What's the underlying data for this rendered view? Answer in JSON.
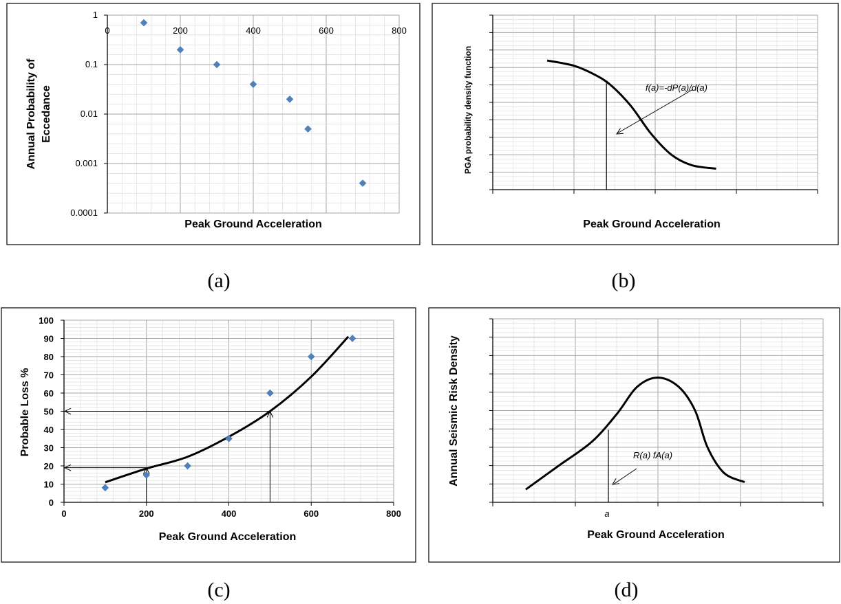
{
  "captions": {
    "a": "(a)",
    "b": "(b)",
    "c": "(c)",
    "d": "(d)"
  },
  "colors": {
    "marker": "#4f81bd",
    "curve": "#000000",
    "grid_major": "#a6a6a6",
    "grid_minor": "#d9d9d9"
  },
  "chart_data": [
    {
      "id": "a",
      "type": "scatter",
      "xlabel": "Peak Ground  Acceleration",
      "ylabel_lines": [
        "Annual Probability  of",
        "Eccedance"
      ],
      "x_ticks": [
        "0",
        "200",
        "400",
        "600",
        "800"
      ],
      "y_ticks": [
        "1",
        "0.1",
        "0.01",
        "0.001",
        "0.0001"
      ],
      "xlim": [
        0,
        800
      ],
      "ylim": [
        0.0001,
        1
      ],
      "y_scale": "log",
      "grid": true,
      "points": [
        {
          "x": 100,
          "y": 0.7
        },
        {
          "x": 200,
          "y": 0.2
        },
        {
          "x": 300,
          "y": 0.1
        },
        {
          "x": 400,
          "y": 0.04
        },
        {
          "x": 500,
          "y": 0.02
        },
        {
          "x": 550,
          "y": 0.005
        },
        {
          "x": 700,
          "y": 0.0004
        }
      ]
    },
    {
      "id": "b",
      "type": "line",
      "xlabel": "Peak Ground  Acceleration",
      "ylabel": "PGA probability density function",
      "annotation": "f(a)=-dP(a)/d(a)",
      "grid": true,
      "xlim": [
        0,
        4
      ],
      "ylim": [
        0,
        10
      ],
      "curve": [
        {
          "x": 0.67,
          "y": 7.4
        },
        {
          "x": 1.0,
          "y": 7.1
        },
        {
          "x": 1.25,
          "y": 6.6
        },
        {
          "x": 1.45,
          "y": 6.0
        },
        {
          "x": 1.7,
          "y": 4.8
        },
        {
          "x": 1.95,
          "y": 3.2
        },
        {
          "x": 2.2,
          "y": 2.0
        },
        {
          "x": 2.45,
          "y": 1.4
        },
        {
          "x": 2.75,
          "y": 1.2
        }
      ],
      "marker_x": 1.4
    },
    {
      "id": "c",
      "type": "scatter",
      "xlabel": "Peak Ground  Acceleration",
      "ylabel": "Probable Loss %",
      "x_ticks": [
        "0",
        "200",
        "400",
        "600",
        "800"
      ],
      "y_ticks": [
        "0",
        "10",
        "20",
        "30",
        "40",
        "50",
        "60",
        "70",
        "80",
        "90",
        "100"
      ],
      "xlim": [
        0,
        800
      ],
      "ylim": [
        0,
        100
      ],
      "grid": true,
      "points": [
        {
          "x": 100,
          "y": 8
        },
        {
          "x": 200,
          "y": 15
        },
        {
          "x": 300,
          "y": 20
        },
        {
          "x": 400,
          "y": 35
        },
        {
          "x": 500,
          "y": 60
        },
        {
          "x": 600,
          "y": 80
        },
        {
          "x": 700,
          "y": 90
        }
      ],
      "trend": [
        {
          "x": 100,
          "y": 11
        },
        {
          "x": 200,
          "y": 18.5
        },
        {
          "x": 300,
          "y": 25
        },
        {
          "x": 400,
          "y": 36
        },
        {
          "x": 500,
          "y": 50
        },
        {
          "x": 600,
          "y": 69
        },
        {
          "x": 690,
          "y": 91
        }
      ],
      "guides": [
        {
          "x": 200,
          "y": 19
        },
        {
          "x": 500,
          "y": 50
        }
      ]
    },
    {
      "id": "d",
      "type": "line",
      "xlabel": "Peak Ground  Acceleration",
      "ylabel": "Annual Seismic Risk Density",
      "annotation": "R(a) fA(a)",
      "x_marker_label": "a",
      "grid": true,
      "xlim": [
        0,
        4
      ],
      "ylim": [
        0,
        10
      ],
      "curve": [
        {
          "x": 0.4,
          "y": 0.7
        },
        {
          "x": 0.8,
          "y": 2.0
        },
        {
          "x": 1.2,
          "y": 3.3
        },
        {
          "x": 1.5,
          "y": 4.8
        },
        {
          "x": 1.75,
          "y": 6.3
        },
        {
          "x": 2.0,
          "y": 6.8
        },
        {
          "x": 2.25,
          "y": 6.3
        },
        {
          "x": 2.45,
          "y": 5.0
        },
        {
          "x": 2.6,
          "y": 3.0
        },
        {
          "x": 2.8,
          "y": 1.6
        },
        {
          "x": 3.05,
          "y": 1.1
        }
      ],
      "marker_x": 1.4
    }
  ]
}
